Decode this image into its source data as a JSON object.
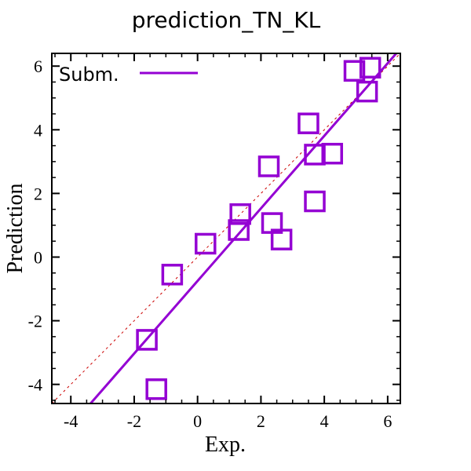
{
  "chart_data": {
    "type": "scatter",
    "title": "prediction_TN_KL",
    "xlabel": "Exp.",
    "ylabel": "Prediction",
    "xlim": [
      -4.6,
      6.4
    ],
    "ylim": [
      -4.6,
      6.4
    ],
    "xticks": [
      -4,
      -2,
      0,
      2,
      4,
      6
    ],
    "yticks": [
      -4,
      -2,
      0,
      2,
      4,
      6
    ],
    "xtick_labels": [
      "-4",
      "-2",
      "0",
      "2",
      "4",
      "6"
    ],
    "ytick_labels": [
      "-4",
      "-2",
      "0",
      "2",
      "4",
      "6"
    ],
    "grid": false,
    "legend": {
      "label": "Subm.",
      "placement": "top-left"
    },
    "series": [
      {
        "name": "Subm.",
        "marker": "square",
        "color": "#9400D3",
        "points": [
          {
            "x": -1.6,
            "y": -2.6
          },
          {
            "x": -1.3,
            "y": -4.15
          },
          {
            "x": -0.8,
            "y": -0.55
          },
          {
            "x": 0.25,
            "y": 0.42
          },
          {
            "x": 1.3,
            "y": 0.85
          },
          {
            "x": 1.35,
            "y": 1.35
          },
          {
            "x": 2.25,
            "y": 2.85
          },
          {
            "x": 2.35,
            "y": 1.07
          },
          {
            "x": 2.65,
            "y": 0.55
          },
          {
            "x": 3.5,
            "y": 4.2
          },
          {
            "x": 3.7,
            "y": 3.22
          },
          {
            "x": 3.7,
            "y": 1.75
          },
          {
            "x": 4.25,
            "y": 3.25
          },
          {
            "x": 4.95,
            "y": 5.85
          },
          {
            "x": 5.35,
            "y": 5.2
          },
          {
            "x": 5.45,
            "y": 5.95
          }
        ]
      }
    ],
    "fit_line": {
      "name": "Subm.",
      "color": "#9400D3",
      "slope": 1.14,
      "intercept": -0.75
    },
    "reference_line": {
      "name": "y = x",
      "color": "#cc0000",
      "slope": 1,
      "intercept": 0
    }
  }
}
